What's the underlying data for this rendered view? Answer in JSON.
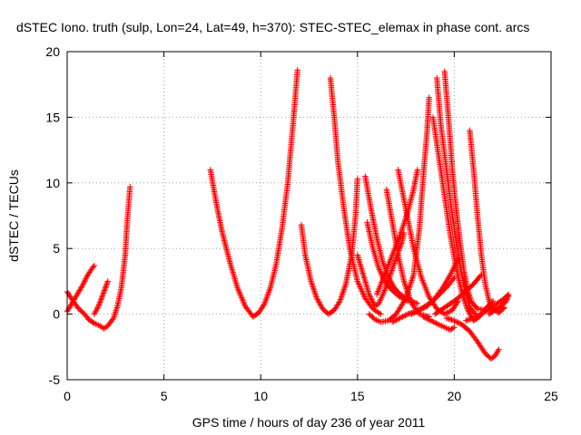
{
  "chart_data": {
    "type": "scatter",
    "title": "dSTEC Iono. truth (sulp, Lon=24, Lat=49, h=370): STEC-STEC_elemax in phase cont. arcs",
    "xlabel": "GPS time / hours of day 236 of year 2011",
    "ylabel": "dSTEC  / TECUs",
    "xlim": [
      0,
      25
    ],
    "ylim": [
      -5,
      20
    ],
    "x_ticks": [
      0,
      5,
      10,
      15,
      20,
      25
    ],
    "y_ticks": [
      -5,
      0,
      5,
      10,
      15,
      20
    ],
    "grid": true,
    "marker": "plus",
    "color": "#ff0000",
    "series": [
      {
        "values": [
          [
            0.0,
            1.7
          ],
          [
            0.3,
            1.0
          ],
          [
            0.6,
            0.4
          ],
          [
            0.9,
            0.0
          ],
          [
            1.1,
            -0.4
          ],
          [
            1.4,
            -0.7
          ],
          [
            1.7,
            -0.9
          ],
          [
            1.9,
            -1.1
          ],
          [
            2.1,
            -0.9
          ],
          [
            2.4,
            -0.3
          ],
          [
            2.6,
            0.6
          ],
          [
            2.8,
            2.0
          ],
          [
            3.0,
            4.5
          ],
          [
            3.1,
            7.0
          ],
          [
            3.25,
            9.7
          ]
        ]
      },
      {
        "values": [
          [
            0.0,
            0.2
          ],
          [
            0.2,
            0.7
          ],
          [
            0.4,
            1.2
          ],
          [
            0.6,
            1.7
          ],
          [
            0.8,
            2.2
          ],
          [
            1.0,
            2.8
          ],
          [
            1.2,
            3.3
          ],
          [
            1.4,
            3.7
          ]
        ]
      },
      {
        "values": [
          [
            1.4,
            0.0
          ],
          [
            1.55,
            0.4
          ],
          [
            1.7,
            0.9
          ],
          [
            1.85,
            1.5
          ],
          [
            2.0,
            2.1
          ],
          [
            2.1,
            2.5
          ]
        ]
      },
      {
        "values": [
          [
            7.4,
            11.0
          ],
          [
            7.7,
            8.5
          ],
          [
            8.0,
            6.3
          ],
          [
            8.4,
            4.0
          ],
          [
            8.8,
            2.0
          ],
          [
            9.2,
            0.6
          ],
          [
            9.6,
            -0.2
          ],
          [
            9.9,
            0.1
          ],
          [
            10.2,
            0.8
          ],
          [
            10.5,
            2.0
          ],
          [
            10.8,
            3.8
          ],
          [
            11.1,
            6.5
          ],
          [
            11.4,
            10.0
          ],
          [
            11.7,
            15.0
          ],
          [
            11.9,
            18.6
          ]
        ]
      },
      {
        "values": [
          [
            12.1,
            6.8
          ],
          [
            12.3,
            4.5
          ],
          [
            12.6,
            2.5
          ],
          [
            12.9,
            1.2
          ],
          [
            13.2,
            0.4
          ],
          [
            13.5,
            0.0
          ],
          [
            13.8,
            0.3
          ],
          [
            14.1,
            1.0
          ],
          [
            14.4,
            2.3
          ],
          [
            14.7,
            4.5
          ],
          [
            14.9,
            7.5
          ],
          [
            15.0,
            10.3
          ]
        ]
      },
      {
        "values": [
          [
            13.6,
            18.0
          ],
          [
            13.8,
            15.0
          ],
          [
            14.0,
            11.5
          ],
          [
            14.3,
            8.0
          ],
          [
            14.6,
            5.0
          ],
          [
            15.0,
            2.5
          ],
          [
            15.4,
            1.2
          ],
          [
            15.8,
            0.4
          ],
          [
            16.2,
            0.0
          ]
        ]
      },
      {
        "values": [
          [
            15.0,
            4.5
          ],
          [
            15.3,
            3.0
          ],
          [
            15.6,
            1.5
          ],
          [
            15.9,
            0.6
          ],
          [
            16.1,
            0.8
          ],
          [
            16.4,
            1.8
          ],
          [
            16.7,
            3.0
          ],
          [
            17.0,
            4.3
          ],
          [
            17.3,
            5.5
          ],
          [
            17.4,
            6.2
          ]
        ]
      },
      {
        "values": [
          [
            15.4,
            10.5
          ],
          [
            15.7,
            8.0
          ],
          [
            16.0,
            5.8
          ],
          [
            16.3,
            4.0
          ],
          [
            16.6,
            2.8
          ],
          [
            16.9,
            2.0
          ],
          [
            17.2,
            1.5
          ],
          [
            17.5,
            1.2
          ],
          [
            17.8,
            1.0
          ],
          [
            18.1,
            0.8
          ]
        ]
      },
      {
        "values": [
          [
            15.5,
            7.0
          ],
          [
            15.8,
            5.0
          ],
          [
            16.1,
            3.5
          ],
          [
            16.4,
            2.5
          ],
          [
            16.8,
            1.8
          ],
          [
            17.2,
            1.3
          ],
          [
            17.6,
            1.0
          ]
        ]
      },
      {
        "values": [
          [
            15.6,
            0.0
          ],
          [
            15.9,
            -0.4
          ],
          [
            16.2,
            -0.6
          ],
          [
            16.6,
            -0.5
          ],
          [
            17.0,
            0.0
          ],
          [
            17.5,
            1.2
          ],
          [
            17.9,
            3.0
          ],
          [
            18.2,
            6.5
          ],
          [
            18.4,
            10.5
          ],
          [
            18.6,
            14.0
          ],
          [
            18.7,
            16.5
          ]
        ]
      },
      {
        "values": [
          [
            16.5,
            9.5
          ],
          [
            16.8,
            7.0
          ],
          [
            17.1,
            4.5
          ],
          [
            17.4,
            2.5
          ],
          [
            17.8,
            0.8
          ],
          [
            18.2,
            0.0
          ],
          [
            18.7,
            -0.2
          ]
        ]
      },
      {
        "values": [
          [
            16.0,
            1.5
          ],
          [
            16.4,
            3.0
          ],
          [
            16.8,
            4.5
          ],
          [
            17.2,
            6.0
          ],
          [
            17.6,
            7.8
          ],
          [
            17.9,
            9.5
          ],
          [
            18.1,
            11.0
          ]
        ]
      },
      {
        "values": [
          [
            17.1,
            11.0
          ],
          [
            17.5,
            8.0
          ],
          [
            17.9,
            5.0
          ],
          [
            18.3,
            2.8
          ],
          [
            18.7,
            1.3
          ],
          [
            19.1,
            0.4
          ],
          [
            19.5,
            0.0
          ],
          [
            19.9,
            0.3
          ],
          [
            20.2,
            1.0
          ]
        ]
      },
      {
        "values": [
          [
            17.8,
            0.0
          ],
          [
            18.2,
            0.3
          ],
          [
            18.6,
            0.6
          ],
          [
            19.0,
            1.2
          ],
          [
            19.4,
            2.0
          ],
          [
            19.8,
            3.0
          ],
          [
            20.2,
            4.2
          ]
        ]
      },
      {
        "values": [
          [
            18.9,
            15.0
          ],
          [
            19.2,
            12.0
          ],
          [
            19.5,
            9.0
          ],
          [
            19.8,
            6.0
          ],
          [
            20.1,
            3.5
          ],
          [
            20.4,
            1.6
          ],
          [
            20.7,
            0.3
          ],
          [
            21.0,
            -0.5
          ],
          [
            21.3,
            -0.2
          ],
          [
            21.6,
            0.4
          ],
          [
            22.0,
            1.0
          ]
        ]
      },
      {
        "values": [
          [
            19.1,
            18.0
          ],
          [
            19.3,
            14.5
          ],
          [
            19.6,
            11.0
          ],
          [
            19.9,
            7.5
          ],
          [
            20.2,
            4.5
          ],
          [
            20.5,
            2.2
          ],
          [
            20.8,
            0.5
          ],
          [
            21.1,
            0.0
          ]
        ]
      },
      {
        "values": [
          [
            19.5,
            18.5
          ],
          [
            19.7,
            15.0
          ],
          [
            19.9,
            11.0
          ],
          [
            20.1,
            8.0
          ],
          [
            20.3,
            5.5
          ],
          [
            20.5,
            3.3
          ],
          [
            20.7,
            1.8
          ],
          [
            20.9,
            0.9
          ],
          [
            21.2,
            0.4
          ],
          [
            21.6,
            0.3
          ],
          [
            22.0,
            0.5
          ]
        ]
      },
      {
        "values": [
          [
            18.4,
            -0.2
          ],
          [
            18.8,
            -0.5
          ],
          [
            19.2,
            -0.8
          ],
          [
            19.5,
            -1.0
          ],
          [
            19.8,
            -1.2
          ],
          [
            20.0,
            -1.0
          ]
        ]
      },
      {
        "values": [
          [
            20.8,
            14.0
          ],
          [
            21.0,
            11.0
          ],
          [
            21.2,
            7.5
          ],
          [
            21.4,
            4.5
          ],
          [
            21.6,
            2.3
          ],
          [
            21.8,
            1.0
          ],
          [
            22.0,
            0.4
          ],
          [
            22.3,
            0.1
          ],
          [
            22.6,
            0.5
          ]
        ]
      },
      {
        "values": [
          [
            19.6,
            -0.3
          ],
          [
            20.0,
            -0.5
          ],
          [
            20.4,
            -0.8
          ],
          [
            20.8,
            -1.3
          ],
          [
            21.2,
            -2.1
          ],
          [
            21.6,
            -3.0
          ],
          [
            21.9,
            -3.4
          ],
          [
            22.1,
            -3.2
          ],
          [
            22.3,
            -2.7
          ]
        ]
      },
      {
        "values": [
          [
            19.0,
            0.0
          ],
          [
            19.5,
            0.5
          ],
          [
            20.0,
            1.0
          ],
          [
            20.5,
            1.6
          ],
          [
            21.0,
            2.3
          ],
          [
            21.4,
            3.0
          ]
        ]
      },
      {
        "values": [
          [
            20.6,
            -0.5
          ],
          [
            21.0,
            -0.3
          ],
          [
            21.4,
            0.0
          ],
          [
            21.8,
            0.4
          ],
          [
            22.2,
            0.8
          ],
          [
            22.6,
            1.2
          ],
          [
            22.8,
            1.5
          ]
        ]
      },
      {
        "values": [
          [
            21.8,
            0.0
          ],
          [
            22.1,
            0.3
          ],
          [
            22.4,
            0.6
          ],
          [
            22.7,
            1.0
          ],
          [
            22.8,
            1.4
          ]
        ]
      },
      {
        "values": [
          [
            16.8,
            -0.6
          ],
          [
            17.2,
            -0.3
          ],
          [
            17.6,
            0.0
          ],
          [
            18.0,
            0.2
          ],
          [
            18.4,
            0.5
          ],
          [
            18.9,
            1.0
          ],
          [
            19.3,
            1.6
          ],
          [
            19.7,
            2.2
          ],
          [
            20.0,
            2.8
          ]
        ]
      }
    ]
  }
}
